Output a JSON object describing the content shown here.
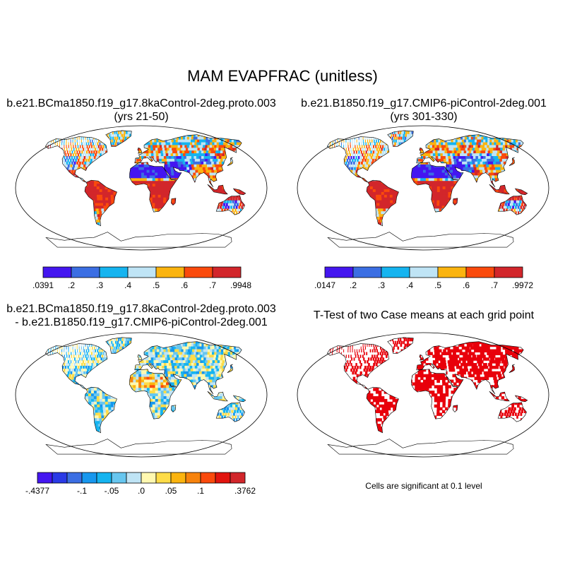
{
  "main_title": "MAM EVAPFRAC (unitless)",
  "panels": {
    "top_left": {
      "title_line1": "b.e21.BCma1850.f19_g17.8kaControl-2deg.proto.003",
      "title_line2": "(yrs 21-50)",
      "colorbar": {
        "colors": [
          "#4416f0",
          "#3b6ee3",
          "#15b4f0",
          "#bfe4f5",
          "#fbb40f",
          "#fa4a0c",
          "#d2262b"
        ],
        "labels": [
          ".0391",
          ".2",
          ".3",
          ".4",
          ".5",
          ".6",
          ".7",
          ".9948"
        ]
      }
    },
    "top_right": {
      "title_line1": "b.e21.B1850.f19_g17.CMIP6-piControl-2deg.001",
      "title_line2": "(yrs 301-330)",
      "colorbar": {
        "colors": [
          "#4416f0",
          "#3b6ee3",
          "#15b4f0",
          "#bfe4f5",
          "#fbb40f",
          "#fa4a0c",
          "#d2262b"
        ],
        "labels": [
          ".0147",
          ".2",
          ".3",
          ".4",
          ".5",
          ".6",
          ".7",
          ".9972"
        ]
      }
    },
    "bottom_left": {
      "title_line1": "b.e21.BCma1850.f19_g17.8kaControl-2deg.proto.003",
      "title_line2": "- b.e21.B1850.f19_g17.CMIP6-piControl-2deg.001",
      "colorbar": {
        "colors": [
          "#4416f0",
          "#2a3ae6",
          "#3b6ee3",
          "#1797ee",
          "#15b4f0",
          "#67c6ef",
          "#bfe4f5",
          "#fff8b0",
          "#fedc48",
          "#fbb40f",
          "#f7830d",
          "#fa4a0c",
          "#e2140e",
          "#d2262b"
        ],
        "labels": [
          {
            "text": "-.4377",
            "edge": 0
          },
          {
            "text": "-.1",
            "edge": 3
          },
          {
            "text": "-.05",
            "edge": 5
          },
          {
            "text": ".0",
            "edge": 7
          },
          {
            "text": ".05",
            "edge": 9
          },
          {
            "text": ".1",
            "edge": 11
          },
          {
            "text": ".3762",
            "edge": 14
          }
        ]
      }
    },
    "bottom_right": {
      "title_line1": "T-Test of two Case means at each grid point",
      "note": "Cells are significant at 0.1 level",
      "sig_color": "#e8000b"
    }
  },
  "colors": {
    "ocean": "#ffffff",
    "coast": "#000000"
  }
}
